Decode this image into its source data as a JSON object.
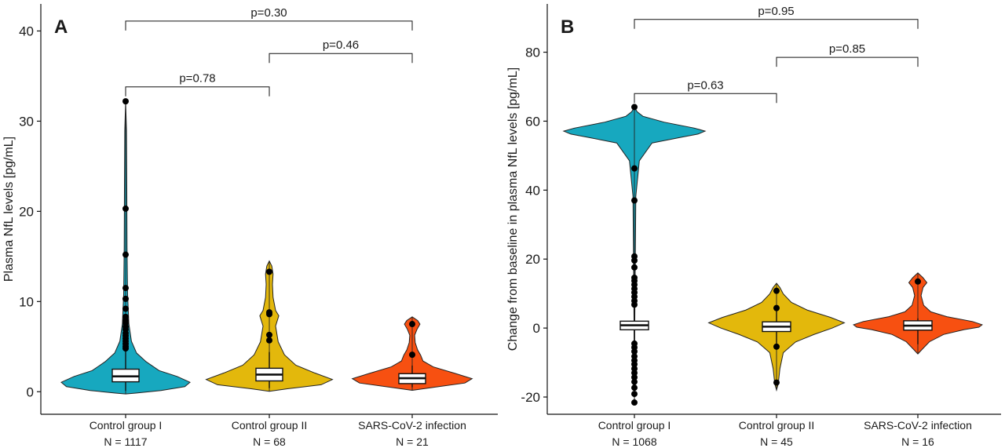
{
  "chart_data": [
    {
      "type": "violin",
      "panel_label": "A",
      "ylabel": "Plasma NfL levels [pg/mL]",
      "ylim": [
        -2.5,
        43
      ],
      "yticks": [
        0,
        10,
        20,
        30,
        40
      ],
      "categories": [
        "Control group I",
        "Control group II",
        "SARS-CoV-2 infection"
      ],
      "n_labels": [
        "N = 1117",
        "N = 68",
        "N = 21"
      ],
      "colors": [
        "#17a8bf",
        "#e3b80c",
        "#f75011"
      ],
      "groups": [
        {
          "name": "Control group I",
          "box": {
            "q1": 1.1,
            "median": 1.7,
            "q3": 2.5
          },
          "whisker": [
            0.1,
            4.6
          ],
          "violin_max": 32.2,
          "outliers": [
            32.2,
            20.3,
            15.2,
            11.5,
            10.3,
            9.2,
            8.3,
            7.9,
            7.6,
            7.2,
            6.9,
            6.5,
            6.2,
            5.9,
            5.6,
            5.3,
            5.0,
            4.8
          ]
        },
        {
          "name": "Control group II",
          "box": {
            "q1": 1.2,
            "median": 1.9,
            "q3": 2.6
          },
          "whisker": [
            0.4,
            4.4
          ],
          "violin_max": 14.5,
          "outliers": [
            13.3,
            8.8,
            8.6,
            6.3,
            5.7
          ]
        },
        {
          "name": "SARS-CoV-2 infection",
          "box": {
            "q1": 0.9,
            "median": 1.5,
            "q3": 2.0
          },
          "whisker": [
            0.5,
            2.9
          ],
          "violin_max": 8.3,
          "outliers": [
            7.5,
            4.1
          ]
        }
      ],
      "comparisons": [
        {
          "groups": [
            0,
            1
          ],
          "label": "p=0.78",
          "y": 33.8
        },
        {
          "groups": [
            1,
            2
          ],
          "label": "p=0.46",
          "y": 37.5
        },
        {
          "groups": [
            0,
            2
          ],
          "label": "p=0.30",
          "y": 41.1
        }
      ]
    },
    {
      "type": "violin",
      "panel_label": "B",
      "ylabel": "Change from baseline in plasma NfL levels [pg/mL]",
      "ylim": [
        -25,
        94
      ],
      "yticks": [
        -20,
        0,
        20,
        40,
        60,
        80
      ],
      "categories": [
        "Control group I",
        "Control group II",
        "SARS-CoV-2 infection"
      ],
      "n_labels": [
        "N = 1068",
        "N = 45",
        "N = 16"
      ],
      "colors": [
        "#17a8bf",
        "#e3b80c",
        "#f75011"
      ],
      "groups": [
        {
          "name": "Control group I",
          "box": {
            "q1": -0.5,
            "median": 0.8,
            "q3": 2.0
          },
          "whisker": [
            -4.2,
            5.7
          ],
          "violin_min": -22,
          "violin_max": 64,
          "outliers": [
            64.1,
            46.3,
            37.0,
            20.8,
            19.6,
            17.6,
            14.6,
            13.7,
            12.6,
            11.4,
            10.3,
            9.1,
            7.9,
            6.8,
            -4.5,
            -5.6,
            -6.8,
            -8.2,
            -9.4,
            -10.5,
            -11.8,
            -13.0,
            -14.3,
            -15.6,
            -17.3,
            -19.1,
            -21.6
          ]
        },
        {
          "name": "Control group II",
          "box": {
            "q1": -1.0,
            "median": 0.4,
            "q3": 1.8
          },
          "whisker": [
            -4.5,
            5.8
          ],
          "violin_min": -18,
          "violin_max": 13,
          "outliers": [
            10.8,
            5.8,
            -5.4,
            -15.8
          ]
        },
        {
          "name": "SARS-CoV-2 infection",
          "box": {
            "q1": -0.6,
            "median": 0.7,
            "q3": 2.1
          },
          "whisker": [
            -4.7,
            2.8
          ],
          "violin_min": -7.5,
          "violin_max": 16,
          "outliers": [
            13.5
          ]
        }
      ],
      "comparisons": [
        {
          "groups": [
            0,
            1
          ],
          "label": "p=0.63",
          "y": 68.0
        },
        {
          "groups": [
            1,
            2
          ],
          "label": "p=0.85",
          "y": 78.5
        },
        {
          "groups": [
            0,
            2
          ],
          "label": "p=0.95",
          "y": 89.5
        }
      ]
    }
  ]
}
